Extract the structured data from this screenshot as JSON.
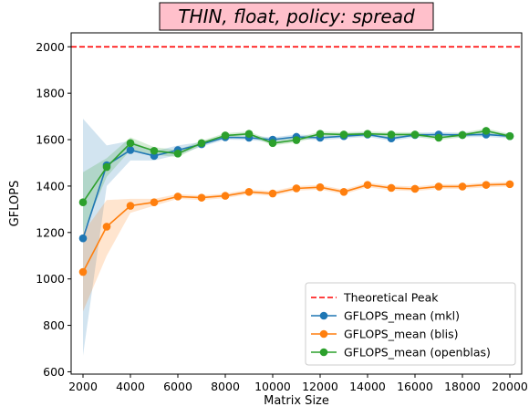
{
  "chart_data": {
    "type": "line",
    "title": "THIN, float, policy: spread",
    "title_box_color": "#ffc0cb",
    "xlabel": "Matrix Size",
    "ylabel": "GFLOPS",
    "xlim": [
      1500,
      20500
    ],
    "ylim": [
      590,
      2060
    ],
    "xticks": [
      2000,
      4000,
      6000,
      8000,
      10000,
      12000,
      14000,
      16000,
      18000,
      20000
    ],
    "yticks": [
      600,
      800,
      1000,
      1200,
      1400,
      1600,
      1800,
      2000
    ],
    "x": [
      2000,
      3000,
      4000,
      5000,
      6000,
      7000,
      8000,
      9000,
      10000,
      11000,
      12000,
      13000,
      14000,
      15000,
      16000,
      17000,
      18000,
      19000,
      20000
    ],
    "peak": {
      "name": "Theoretical Peak",
      "value": 2000,
      "color": "#ff0000"
    },
    "series": [
      {
        "name": "GFLOPS_mean (mkl)",
        "color": "#1f77b4",
        "values": [
          1175,
          1490,
          1555,
          1530,
          1555,
          1580,
          1610,
          1608,
          1600,
          1612,
          1608,
          1615,
          1622,
          1605,
          1620,
          1622,
          1620,
          1622,
          1615
        ],
        "band_low": [
          670,
          1400,
          1510,
          1510,
          1535,
          1570,
          1600,
          1598,
          1590,
          1602,
          1598,
          1605,
          1612,
          1595,
          1610,
          1612,
          1610,
          1612,
          1605
        ],
        "band_high": [
          1690,
          1575,
          1595,
          1550,
          1575,
          1590,
          1620,
          1618,
          1610,
          1622,
          1618,
          1625,
          1632,
          1615,
          1630,
          1632,
          1630,
          1632,
          1625
        ]
      },
      {
        "name": "GFLOPS_mean (blis)",
        "color": "#ff7f0e",
        "values": [
          1030,
          1225,
          1315,
          1330,
          1355,
          1350,
          1358,
          1375,
          1368,
          1390,
          1395,
          1375,
          1405,
          1392,
          1388,
          1398,
          1398,
          1405,
          1408
        ],
        "band_low": [
          860,
          1100,
          1285,
          1315,
          1345,
          1340,
          1348,
          1365,
          1358,
          1380,
          1385,
          1365,
          1395,
          1382,
          1378,
          1388,
          1388,
          1395,
          1398
        ],
        "band_high": [
          1200,
          1340,
          1345,
          1345,
          1365,
          1360,
          1368,
          1385,
          1378,
          1400,
          1405,
          1385,
          1415,
          1402,
          1398,
          1408,
          1408,
          1415,
          1418
        ]
      },
      {
        "name": "GFLOPS_mean (openblas)",
        "color": "#2ca02c",
        "values": [
          1330,
          1482,
          1585,
          1552,
          1540,
          1585,
          1618,
          1625,
          1585,
          1598,
          1625,
          1622,
          1625,
          1622,
          1622,
          1608,
          1620,
          1638,
          1615
        ],
        "band_low": [
          1200,
          1440,
          1555,
          1535,
          1525,
          1575,
          1608,
          1615,
          1575,
          1588,
          1615,
          1612,
          1615,
          1612,
          1612,
          1598,
          1610,
          1628,
          1605
        ],
        "band_high": [
          1460,
          1520,
          1610,
          1568,
          1555,
          1595,
          1628,
          1635,
          1595,
          1608,
          1635,
          1632,
          1635,
          1632,
          1632,
          1618,
          1630,
          1648,
          1625
        ]
      }
    ],
    "legend_placement": "lower-right",
    "grid": false
  }
}
